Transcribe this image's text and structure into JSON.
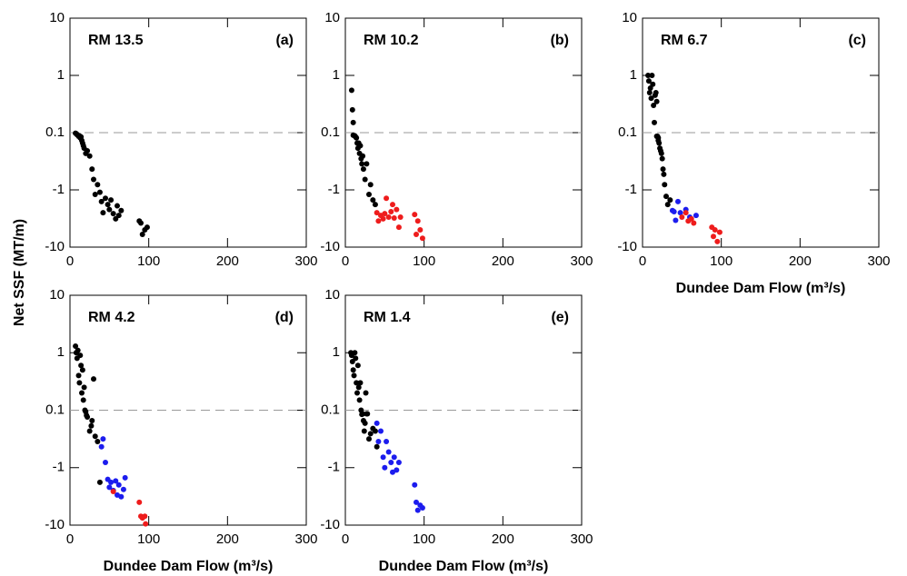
{
  "ylabel": "Net SSF (MT/m)",
  "chart_data": [
    {
      "type": "scatter",
      "title": "RM 13.5",
      "panel": "(a)",
      "xlim": [
        0,
        300
      ],
      "xticks": [
        0,
        100,
        200,
        300
      ],
      "ylim": [
        -10,
        10
      ],
      "yticks": [
        10,
        1,
        0.1,
        -1,
        -10
      ],
      "hline": 0.1,
      "series": [
        {
          "color": "#000000",
          "x": [
            7,
            8,
            9,
            10,
            11,
            12,
            13,
            14,
            15,
            16,
            17,
            18,
            20,
            22,
            25,
            28,
            30,
            32,
            35,
            38,
            40,
            42,
            45,
            48,
            50,
            52,
            55,
            58,
            60,
            62,
            65,
            88,
            90,
            92,
            95,
            98
          ],
          "values": [
            0.09,
            0.08,
            0.06,
            0.05,
            0.03,
            0.04,
            0.0,
            0.02,
            -0.05,
            -0.1,
            -0.15,
            -0.2,
            -0.3,
            -0.25,
            -0.35,
            -0.6,
            -0.8,
            -1.2,
            -0.9,
            -1.1,
            -1.6,
            -2.5,
            -1.4,
            -1.8,
            -2.2,
            -1.5,
            -2.6,
            -3.2,
            -1.9,
            -2.8,
            -2.3,
            -3.5,
            -3.8,
            -6,
            -5,
            -4.5
          ]
        }
      ]
    },
    {
      "type": "scatter",
      "title": "RM 10.2",
      "panel": "(b)",
      "xlim": [
        0,
        300
      ],
      "xticks": [
        0,
        100,
        200,
        300
      ],
      "ylim": [
        -10,
        10
      ],
      "yticks": [
        10,
        1,
        0.1,
        -1,
        -10
      ],
      "hline": 0.1,
      "series": [
        {
          "color": "#000000",
          "x": [
            8,
            9,
            10,
            10,
            12,
            13,
            14,
            15,
            16,
            17,
            18,
            19,
            20,
            21,
            22,
            23,
            25,
            27,
            30,
            32,
            35,
            38
          ],
          "values": [
            0.55,
            0.25,
            0.15,
            0.05,
            0.04,
            0.02,
            0.0,
            -0.1,
            -0.2,
            -0.1,
            -0.3,
            -0.15,
            -0.4,
            -0.5,
            -0.35,
            -0.6,
            -0.8,
            -0.5,
            -1.2,
            -0.9,
            -1.5,
            -1.8
          ]
        },
        {
          "color": "#ee1c1c",
          "x": [
            40,
            42,
            45,
            48,
            50,
            52,
            55,
            58,
            60,
            62,
            65,
            68,
            70,
            88,
            90,
            92,
            95,
            98
          ],
          "values": [
            -2.5,
            -3.5,
            -2.8,
            -3.2,
            -2.6,
            -1.4,
            -3,
            -2.4,
            -1.8,
            -3.1,
            -2.2,
            -4.5,
            -3,
            -2.7,
            -6,
            -3.5,
            -5,
            -7
          ]
        }
      ]
    },
    {
      "type": "scatter",
      "title": "RM 6.7",
      "panel": "(c)",
      "xlabel": "Dundee Dam Flow (m³/s)",
      "xlim": [
        0,
        300
      ],
      "xticks": [
        0,
        100,
        200,
        300
      ],
      "ylim": [
        -10,
        10
      ],
      "yticks": [
        10,
        1,
        0.1,
        -1,
        -10
      ],
      "hline": 0.1,
      "series": [
        {
          "color": "#000000",
          "x": [
            7,
            8,
            9,
            10,
            11,
            12,
            13,
            14,
            15,
            16,
            17,
            18,
            18,
            19,
            20,
            20,
            21,
            22,
            23,
            24,
            25,
            26,
            27,
            28,
            30,
            32,
            35
          ],
          "values": [
            1,
            0.8,
            0.5,
            0.6,
            0.4,
            1,
            0.7,
            0.3,
            0.15,
            0.45,
            0.5,
            0.35,
            0.03,
            0.03,
            0.0,
            -0.05,
            -0.1,
            -0.2,
            -0.25,
            -0.3,
            -0.4,
            -0.6,
            -0.7,
            -0.9,
            -1.3,
            -1.8,
            -1.5
          ]
        },
        {
          "color": "#1c1cee",
          "x": [
            38,
            40,
            42,
            45,
            48,
            55,
            60,
            68
          ],
          "values": [
            -2.3,
            -2.4,
            -3.4,
            -1.6,
            -2.5,
            -2.2,
            -3,
            -2.8
          ]
        },
        {
          "color": "#ee1c1c",
          "x": [
            50,
            55,
            58,
            62,
            65,
            88,
            90,
            92,
            95,
            98
          ],
          "values": [
            -3,
            -2.5,
            -3.5,
            -3.2,
            -3.8,
            -4.5,
            -6.5,
            -5,
            -8,
            -5.5
          ]
        }
      ]
    },
    {
      "type": "scatter",
      "title": "RM 4.2",
      "panel": "(d)",
      "xlabel": "Dundee Dam Flow (m³/s)",
      "xlim": [
        0,
        300
      ],
      "xticks": [
        0,
        100,
        200,
        300
      ],
      "ylim": [
        -10,
        10
      ],
      "yticks": [
        10,
        1,
        0.1,
        -1,
        -10
      ],
      "hline": 0.1,
      "series": [
        {
          "color": "#000000",
          "x": [
            7,
            8,
            9,
            10,
            11,
            12,
            13,
            14,
            15,
            16,
            17,
            18,
            19,
            20,
            21,
            22,
            25,
            27,
            28,
            30,
            32,
            35,
            38
          ],
          "values": [
            1.3,
            1,
            0.8,
            1.1,
            0.4,
            0.3,
            0.9,
            0.6,
            0.2,
            0.5,
            0.15,
            0.25,
            0.1,
            0.07,
            0.0,
            -0.03,
            -0.3,
            -0.2,
            -0.1,
            0.35,
            -0.4,
            -0.5,
            -1.8
          ]
        },
        {
          "color": "#1c1cee",
          "x": [
            40,
            42,
            45,
            48,
            50,
            52,
            55,
            58,
            60,
            62,
            65,
            68,
            70
          ],
          "values": [
            -0.6,
            -0.45,
            -0.9,
            -1.6,
            -2.2,
            -1.8,
            -2.5,
            -1.7,
            -3,
            -2,
            -3.2,
            -2.4,
            -1.5
          ]
        },
        {
          "color": "#ee1c1c",
          "x": [
            55,
            88,
            90,
            92,
            95,
            96
          ],
          "values": [
            -2.6,
            -4,
            -7,
            -7.5,
            -7,
            -9.5
          ]
        }
      ]
    },
    {
      "type": "scatter",
      "title": "RM 1.4",
      "panel": "(e)",
      "xlabel": "Dundee Dam Flow (m³/s)",
      "xlim": [
        0,
        300
      ],
      "xticks": [
        0,
        100,
        200,
        300
      ],
      "ylim": [
        -10,
        10
      ],
      "yticks": [
        10,
        1,
        0.1,
        -1,
        -10
      ],
      "hline": 0.1,
      "series": [
        {
          "color": "#000000",
          "x": [
            7,
            8,
            9,
            10,
            11,
            12,
            13,
            14,
            15,
            16,
            17,
            18,
            19,
            20,
            21,
            22,
            23,
            24,
            25,
            26,
            27,
            28,
            30,
            32,
            35,
            38,
            40
          ],
          "values": [
            1,
            0.9,
            0.7,
            0.5,
            0.4,
            1,
            0.8,
            0.3,
            0.2,
            0.6,
            0.25,
            0.15,
            0.3,
            0.1,
            0.02,
            0.03,
            -0.1,
            -0.3,
            -0.15,
            0.2,
            0.03,
            0.03,
            -0.45,
            -0.35,
            -0.25,
            -0.3,
            -0.6
          ]
        },
        {
          "color": "#1c1cee",
          "x": [
            40,
            42,
            45,
            48,
            50,
            52,
            55,
            58,
            60,
            62,
            65,
            68,
            88,
            90,
            92,
            95,
            98
          ],
          "values": [
            -0.15,
            -0.5,
            -0.3,
            -0.8,
            -1,
            -0.5,
            -0.7,
            -0.9,
            -1.2,
            -0.8,
            -1.1,
            -0.9,
            -2,
            -4,
            -5.5,
            -4.5,
            -5
          ]
        }
      ]
    }
  ]
}
